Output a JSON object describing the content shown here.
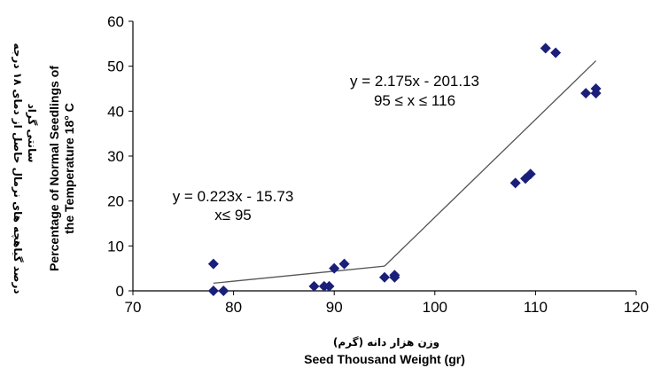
{
  "chart_data": {
    "type": "scatter",
    "xlim": [
      70,
      120
    ],
    "ylim": [
      0,
      60
    ],
    "x_ticks": [
      70,
      80,
      90,
      100,
      110,
      120
    ],
    "y_ticks": [
      0,
      10,
      20,
      30,
      40,
      50,
      60
    ],
    "grid": false,
    "legend": "none",
    "xlabel": "Seed  Thousand Weight (gr)",
    "xlabel_persian": "وزن هزار دانه (گرم)",
    "ylabel": [
      "Percentage of Normal Seedlings of",
      "the Temperature 18° C"
    ],
    "ylabel_persian": [
      "درصد گیاهچه های نرمال حاصل از دمای ۱۸ درجه",
      "سانتی گراد"
    ],
    "marker_color": "#1a1f7a",
    "line_color": "#555555",
    "points": [
      {
        "x": 78,
        "y": 6
      },
      {
        "x": 78,
        "y": 0
      },
      {
        "x": 79,
        "y": 0
      },
      {
        "x": 88,
        "y": 1
      },
      {
        "x": 89,
        "y": 1
      },
      {
        "x": 89.5,
        "y": 1
      },
      {
        "x": 90,
        "y": 5
      },
      {
        "x": 91,
        "y": 6
      },
      {
        "x": 95,
        "y": 3
      },
      {
        "x": 96,
        "y": 3
      },
      {
        "x": 96,
        "y": 3.5
      },
      {
        "x": 108,
        "y": 24
      },
      {
        "x": 109,
        "y": 25
      },
      {
        "x": 109.5,
        "y": 26
      },
      {
        "x": 111,
        "y": 54
      },
      {
        "x": 112,
        "y": 53
      },
      {
        "x": 115,
        "y": 44
      },
      {
        "x": 116,
        "y": 45
      },
      {
        "x": 116,
        "y": 44
      }
    ],
    "fit_lines": [
      {
        "x": [
          78,
          95
        ],
        "y": [
          1.7,
          5.5
        ]
      },
      {
        "x": [
          95,
          116
        ],
        "y": [
          5.5,
          51.2
        ]
      }
    ],
    "annotations": [
      {
        "line1": "y = 0.223x - 15.73",
        "line2": "x≤ 95"
      },
      {
        "line1": "y = 2.175x - 201.13",
        "line2": "95 ≤ x ≤ 116"
      }
    ]
  }
}
